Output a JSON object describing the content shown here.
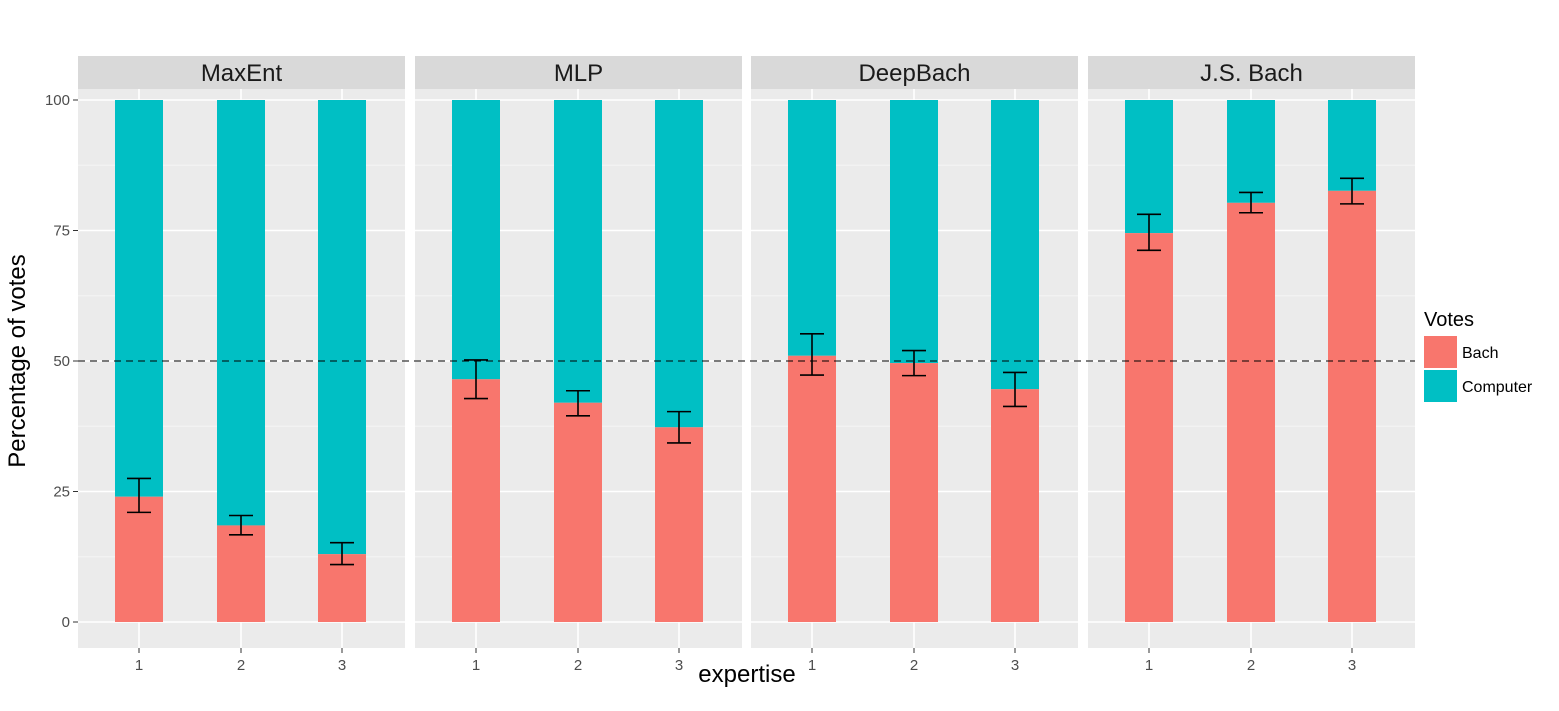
{
  "chart_data": {
    "type": "bar",
    "stacked": true,
    "facet_by": "model",
    "facets": [
      {
        "label": "MaxEnt",
        "categories": [
          "1",
          "2",
          "3"
        ],
        "bach": [
          24,
          18.5,
          13
        ],
        "bach_err_low": [
          21,
          16.7,
          11
        ],
        "bach_err_high": [
          27.5,
          20.4,
          15.2
        ]
      },
      {
        "label": "MLP",
        "categories": [
          "1",
          "2",
          "3"
        ],
        "bach": [
          46.5,
          42,
          37.3
        ],
        "bach_err_low": [
          42.8,
          39.5,
          34.3
        ],
        "bach_err_high": [
          50.2,
          44.3,
          40.3
        ]
      },
      {
        "label": "DeepBach",
        "categories": [
          "1",
          "2",
          "3"
        ],
        "bach": [
          51,
          49.6,
          44.6
        ],
        "bach_err_low": [
          47.3,
          47.2,
          41.3
        ],
        "bach_err_high": [
          55.2,
          52,
          47.8
        ]
      },
      {
        "label": "J.S. Bach",
        "categories": [
          "1",
          "2",
          "3"
        ],
        "bach": [
          74.5,
          80.3,
          82.6
        ],
        "bach_err_low": [
          71.2,
          78.4,
          80.1
        ],
        "bach_err_high": [
          78.1,
          82.3,
          85
        ]
      }
    ],
    "xlabel": "expertise",
    "ylabel": "Percentage of votes",
    "ylim": [
      0,
      100
    ],
    "yticks": [
      "0",
      "25",
      "50",
      "75",
      "100"
    ],
    "reference_line": 50,
    "legend": {
      "title": "Votes",
      "position": "right",
      "items": [
        {
          "name": "Bach",
          "color": "#F8766D"
        },
        {
          "name": "Computer",
          "color": "#00BFC4"
        }
      ]
    },
    "grid": true
  }
}
